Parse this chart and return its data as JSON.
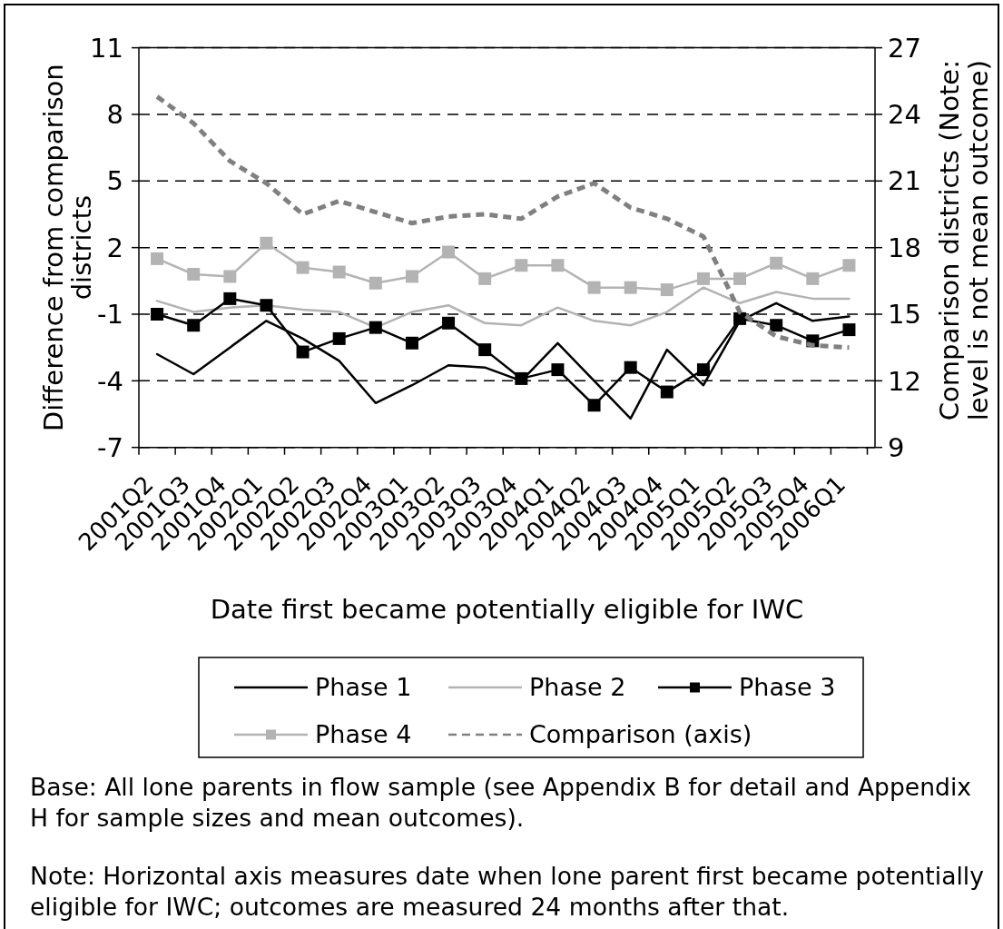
{
  "chart_data": {
    "type": "line",
    "xlabel": "Date first became potentially eligible for IWC",
    "ylabel": "Difference from comparison districts",
    "y2label": "Comparison districts (Note: level is not mean outcome)",
    "categories": [
      "2001Q2",
      "2001Q3",
      "2001Q4",
      "2002Q1",
      "2002Q2",
      "2002Q3",
      "2002Q4",
      "2003Q1",
      "2003Q2",
      "2003Q3",
      "2003Q4",
      "2004Q1",
      "2004Q2",
      "2004Q3",
      "2004Q4",
      "2005Q1",
      "2005Q2",
      "2005Q3",
      "2005Q4",
      "2006Q1"
    ],
    "series": [
      {
        "name": "Phase 1",
        "color": "#000000",
        "values": [
          -2.8,
          -3.7,
          -2.5,
          -1.3,
          -2.1,
          -3.1,
          -5.0,
          -4.2,
          -3.3,
          -3.4,
          -4.0,
          -2.3,
          -4.0,
          -5.7,
          -2.6,
          -4.2,
          -1.3,
          -0.5,
          -1.3,
          -1.1
        ]
      },
      {
        "name": "Phase 2",
        "color": "#b3b3b3",
        "values": [
          -0.4,
          -0.9,
          -0.7,
          -0.6,
          -0.8,
          -0.9,
          -1.6,
          -0.9,
          -0.6,
          -1.4,
          -1.5,
          -0.7,
          -1.3,
          -1.5,
          -0.9,
          0.2,
          -0.5,
          0.0,
          -0.3,
          -0.3
        ]
      },
      {
        "name": "Phase 3",
        "color": "#000000",
        "marker": "square",
        "values": [
          -1.0,
          -1.5,
          -0.3,
          -0.6,
          -2.7,
          -2.1,
          -1.6,
          -2.3,
          -1.4,
          -2.6,
          -3.9,
          -3.5,
          -5.1,
          -3.4,
          -4.5,
          -3.5,
          -1.2,
          -1.5,
          -2.2,
          -1.7
        ]
      },
      {
        "name": "Phase 4",
        "color": "#b3b3b3",
        "marker": "square",
        "values": [
          1.5,
          0.8,
          0.7,
          2.2,
          1.1,
          0.9,
          0.4,
          0.7,
          1.8,
          0.6,
          1.2,
          1.2,
          0.2,
          0.2,
          0.1,
          0.6,
          0.6,
          1.3,
          0.6,
          1.2
        ]
      },
      {
        "name": "Comparison (axis)",
        "color": "#808080",
        "axis": "y2",
        "line_style": "dashed",
        "values": [
          24.8,
          23.6,
          21.9,
          20.9,
          19.5,
          20.1,
          19.6,
          19.1,
          19.4,
          19.5,
          19.3,
          20.3,
          20.9,
          19.8,
          19.3,
          18.5,
          15.1,
          14.0,
          13.6,
          13.5
        ]
      }
    ],
    "ylim": [
      -7,
      11
    ],
    "yticks": [
      -7,
      -4,
      -1,
      2,
      5,
      8,
      11
    ],
    "y2lim": [
      9,
      27
    ],
    "y2ticks": [
      9,
      12,
      15,
      18,
      21,
      24,
      27
    ],
    "grid": "y",
    "legend": "bottom",
    "annotations": [
      "Base: All lone parents in flow sample (see Appendix B for detail and Appendix H for sample sizes and mean outcomes).",
      "Note: Horizontal axis measures date when lone parent first became potentially eligible for IWC; outcomes are measured 24 months after that."
    ]
  }
}
